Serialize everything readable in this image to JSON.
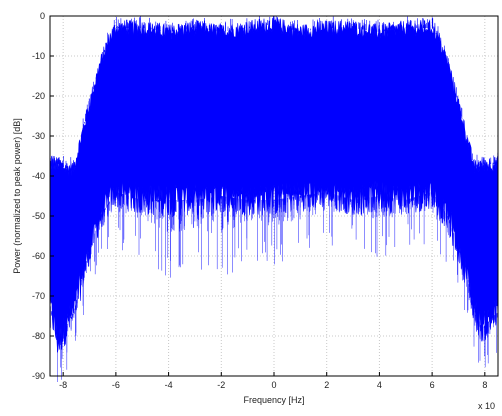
{
  "chart_data": {
    "type": "line",
    "title": "",
    "xlabel": "Frequency [Hz]",
    "ylabel": "Power (normalized to peak power) [dB]",
    "x_multiplier_label": "x 10",
    "xlim": [
      -8.5,
      8.5
    ],
    "ylim": [
      -90,
      0
    ],
    "xticks": [
      -8,
      -6,
      -4,
      -2,
      0,
      2,
      4,
      6,
      8
    ],
    "yticks": [
      0,
      -10,
      -20,
      -30,
      -40,
      -50,
      -60,
      -70,
      -80,
      -90
    ],
    "grid": "on",
    "series_color": "#0000ff",
    "series": [
      {
        "x": [
          -8.5,
          -8.2,
          -7.9,
          -7.6,
          -7.3,
          -7.0,
          -6.6,
          -6.2,
          -6.0,
          -5.0,
          -4.0,
          -3.0,
          -2.0,
          -1.0,
          0.0,
          1.0,
          2.0,
          3.0,
          4.0,
          5.0,
          6.0,
          6.2,
          6.6,
          7.0,
          7.3,
          7.6,
          7.9,
          8.2,
          8.5
        ],
        "upper": [
          -37,
          -37,
          -38,
          -38,
          -30,
          -22,
          -12,
          -5,
          -3,
          -3,
          -4,
          -3,
          -4,
          -3,
          -2,
          -4,
          -3,
          -3,
          -4,
          -3,
          -3,
          -5,
          -12,
          -22,
          -30,
          -38,
          -37,
          -37,
          -37
        ],
        "lower": [
          -72,
          -82,
          -78,
          -74,
          -66,
          -58,
          -50,
          -46,
          -44,
          -46,
          -46,
          -46,
          -45,
          -46,
          -46,
          -45,
          -44,
          -46,
          -45,
          -46,
          -44,
          -46,
          -50,
          -58,
          -64,
          -74,
          -78,
          -76,
          -74
        ],
        "floor": [
          -75,
          -87,
          -84,
          -80,
          -70,
          -64,
          -56,
          -52,
          -52,
          -55,
          -60,
          -58,
          -62,
          -55,
          -57,
          -55,
          -52,
          -52,
          -55,
          -52,
          -52,
          -55,
          -58,
          -62,
          -70,
          -80,
          -85,
          -82,
          -80
        ]
      }
    ]
  }
}
